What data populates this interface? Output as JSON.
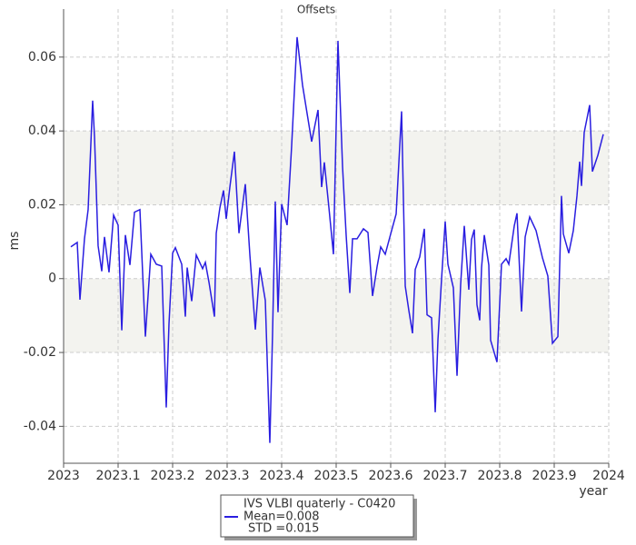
{
  "chart_data": {
    "type": "line",
    "title": "Offsets",
    "x_label": "year",
    "y_label": "ms",
    "xlim": [
      2023,
      2024
    ],
    "xticks": [
      2023,
      2023.1,
      2023.2,
      2023.3,
      2023.4,
      2023.5,
      2023.6,
      2023.7,
      2023.8,
      2023.9,
      2024
    ],
    "ylim": [
      -0.05,
      0.073
    ],
    "yticks": [
      -0.04,
      -0.02,
      0,
      0.02,
      0.04,
      0.06
    ],
    "grid": true,
    "bands": [
      [
        0.02,
        0.04
      ],
      [
        -0.02,
        0
      ]
    ],
    "band_color": "#f3f3ef",
    "legend": "bottom",
    "annotations": [
      "Mean=0.008",
      "STD =0.015"
    ],
    "x": [
      2023.0133,
      2023.025,
      2023.03,
      2023.0383,
      2023.045,
      2023.0533,
      2023.0567,
      2023.0633,
      2023.07,
      2023.075,
      2023.0833,
      2023.0917,
      2023.1,
      2023.1067,
      2023.1133,
      2023.1217,
      2023.13,
      2023.14,
      2023.15,
      2023.16,
      2023.17,
      2023.18,
      2023.1883,
      2023.1933,
      2023.2,
      2023.205,
      2023.2167,
      2023.2233,
      2023.2267,
      2023.235,
      2023.2433,
      2023.255,
      2023.26,
      2023.2667,
      2023.2767,
      2023.28,
      2023.2867,
      2023.2933,
      2023.2983,
      2023.305,
      2023.3133,
      2023.3217,
      2023.3333,
      2023.3417,
      2023.3517,
      2023.36,
      2023.37,
      2023.3783,
      2023.3833,
      2023.3883,
      2023.3933,
      2023.4,
      2023.41,
      2023.4183,
      2023.4283,
      2023.4383,
      2023.455,
      2023.4667,
      2023.4733,
      2023.4783,
      2023.4867,
      2023.495,
      2023.5033,
      2023.5117,
      2023.5183,
      2023.525,
      2023.53,
      2023.5383,
      2023.55,
      2023.5583,
      2023.5667,
      2023.575,
      2023.5817,
      2023.59,
      2023.6,
      2023.61,
      2023.62,
      2023.6267,
      2023.6333,
      2023.64,
      2023.645,
      2023.6533,
      2023.6617,
      2023.6667,
      2023.675,
      2023.6817,
      2023.6867,
      2023.6933,
      2023.7,
      2023.705,
      2023.715,
      2023.7217,
      2023.7283,
      2023.735,
      2023.7433,
      2023.7483,
      2023.7533,
      2023.7583,
      2023.7633,
      2023.7667,
      2023.7717,
      2023.78,
      2023.7833,
      2023.795,
      2023.8033,
      2023.8117,
      2023.8167,
      2023.8267,
      2023.8317,
      2023.84,
      2023.8467,
      2023.855,
      2023.8667,
      2023.8783,
      2023.8883,
      2023.8967,
      2023.9067,
      2023.9133,
      2023.9167,
      2023.9267,
      2023.935,
      2023.9417,
      2023.9467,
      2023.95,
      2023.955,
      2023.965,
      2023.97,
      2023.98,
      2023.99
    ],
    "series": [
      {
        "name": "IVS VLBI quaterly - C0420",
        "color": "#2a1ee0",
        "values": [
          0.0086,
          0.0098,
          -0.0057,
          0.0108,
          0.0187,
          0.0482,
          0.0384,
          0.0089,
          0.002,
          0.0113,
          0.0017,
          0.0172,
          0.0145,
          -0.014,
          0.0118,
          0.0037,
          0.018,
          0.0187,
          -0.0157,
          0.0066,
          0.0039,
          0.0034,
          -0.0349,
          -0.0123,
          0.0069,
          0.0084,
          0.0039,
          -0.0103,
          0.003,
          -0.0061,
          0.0064,
          0.0027,
          0.0044,
          -0.001,
          -0.0103,
          0.0123,
          0.0192,
          0.0239,
          0.0162,
          0.0248,
          0.0344,
          0.0123,
          0.0256,
          0.0064,
          -0.0138,
          0.003,
          -0.0059,
          -0.0445,
          -0.015,
          0.0209,
          -0.0091,
          0.0202,
          0.0145,
          0.0359,
          0.0654,
          0.0524,
          0.0371,
          0.0457,
          0.0248,
          0.0315,
          0.0192,
          0.0066,
          0.0644,
          0.0303,
          0.0118,
          -0.0039,
          0.0108,
          0.0108,
          0.0135,
          0.0125,
          -0.0047,
          0.0032,
          0.0086,
          0.0066,
          0.0121,
          0.0175,
          0.0453,
          -0.002,
          -0.0086,
          -0.0148,
          0.0025,
          0.0059,
          0.0135,
          -0.0098,
          -0.0106,
          -0.0362,
          -0.0165,
          -0.0002,
          0.0155,
          0.0039,
          -0.0025,
          -0.0263,
          -0.0017,
          0.0143,
          -0.003,
          0.0106,
          0.0133,
          -0.0071,
          -0.0113,
          0.003,
          0.0118,
          0.0037,
          -0.0167,
          -0.0226,
          0.0039,
          0.0054,
          0.0039,
          0.0143,
          0.0177,
          -0.0089,
          0.0113,
          0.0167,
          0.013,
          0.0057,
          0.0007,
          -0.0175,
          -0.0157,
          0.0224,
          0.0121,
          0.0069,
          0.013,
          0.0224,
          0.0317,
          0.0251,
          0.0396,
          0.047,
          0.029,
          0.0334,
          0.0391
        ]
      }
    ]
  }
}
